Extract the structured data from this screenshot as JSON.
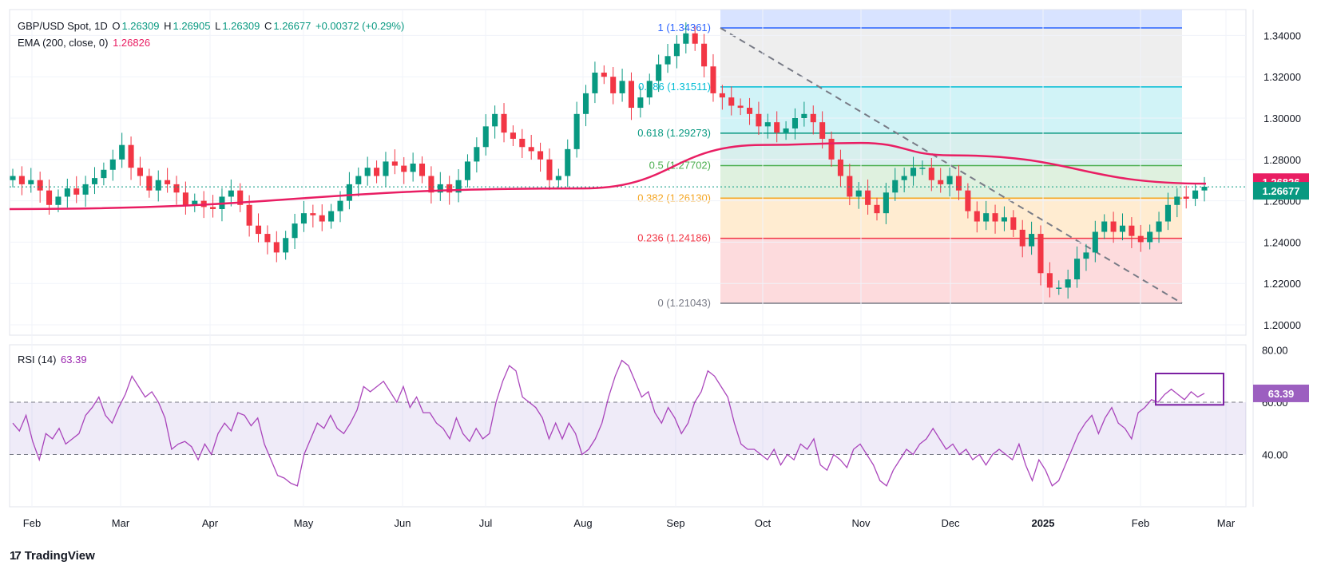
{
  "header": {
    "symbol": "GBP/USD Spot, 1D",
    "open_label": "O",
    "open": "1.26309",
    "high_label": "H",
    "high": "1.26905",
    "low_label": "L",
    "low": "1.26309",
    "close_label": "C",
    "close": "1.26677",
    "change": "+0.00372 (+0.29%)",
    "ema_label": "EMA (200, close, 0)",
    "ema_value": "1.26826",
    "rsi_label": "RSI (14)",
    "rsi_value": "63.39"
  },
  "brand": "TradingView",
  "colors": {
    "up": "#089981",
    "down": "#f23645",
    "ema": "#e91e63",
    "rsi": "#9c27b0",
    "fib_1": "#2962ff",
    "fib_786": "#00bcd4",
    "fib_618": "#089981",
    "fib_05": "#4caf50",
    "fib_382": "#f5a623",
    "fib_236": "#f23645",
    "fib_0": "#787b86"
  },
  "chart_data": [
    {
      "type": "candlestick",
      "title": "GBP/USD Spot, 1D",
      "x_ticks": [
        "Feb",
        "Mar",
        "Apr",
        "May",
        "Jun",
        "Jul",
        "Aug",
        "Sep",
        "Oct",
        "Nov",
        "Dec",
        "2025",
        "Feb",
        "Mar"
      ],
      "y_ticks": [
        "1.34000",
        "1.32000",
        "1.30000",
        "1.28000",
        "1.26000",
        "1.24000",
        "1.22000",
        "1.20000"
      ],
      "ylim": [
        1.195,
        1.3525
      ],
      "last_price": "1.26677",
      "ema_label_value": "1.26826",
      "fib_levels": [
        {
          "label": "1 (1.34361)",
          "value": 1.34361
        },
        {
          "label": "0.786 (1.31511)",
          "value": 1.31511
        },
        {
          "label": "0.618 (1.29273)",
          "value": 1.29273
        },
        {
          "label": "0.5 (1.27702)",
          "value": 1.27702
        },
        {
          "label": "0.382 (1.26130)",
          "value": 1.2613
        },
        {
          "label": "0.236 (1.24186)",
          "value": 1.24186
        },
        {
          "label": "0 (1.21043)",
          "value": 1.21043
        }
      ],
      "close_path": [
        1.272,
        1.268,
        1.27,
        1.265,
        1.258,
        1.262,
        1.266,
        1.263,
        1.268,
        1.271,
        1.275,
        1.28,
        1.287,
        1.276,
        1.272,
        1.265,
        1.27,
        1.268,
        1.264,
        1.258,
        1.26,
        1.257,
        1.256,
        1.262,
        1.265,
        1.258,
        1.248,
        1.244,
        1.24,
        1.235,
        1.242,
        1.249,
        1.254,
        1.253,
        1.25,
        1.255,
        1.26,
        1.268,
        1.272,
        1.276,
        1.272,
        1.279,
        1.277,
        1.274,
        1.278,
        1.272,
        1.264,
        1.268,
        1.264,
        1.27,
        1.279,
        1.286,
        1.296,
        1.302,
        1.293,
        1.29,
        1.286,
        1.284,
        1.28,
        1.27,
        1.272,
        1.285,
        1.302,
        1.312,
        1.322,
        1.32,
        1.312,
        1.318,
        1.305,
        1.31,
        1.318,
        1.326,
        1.33,
        1.336,
        1.341,
        1.336,
        1.325,
        1.312,
        1.31,
        1.306,
        1.305,
        1.302,
        1.296,
        1.298,
        1.293,
        1.295,
        1.3,
        1.302,
        1.298,
        1.29,
        1.28,
        1.272,
        1.262,
        1.265,
        1.258,
        1.254,
        1.264,
        1.27,
        1.272,
        1.276,
        1.276,
        1.27,
        1.268,
        1.272,
        1.265,
        1.255,
        1.25,
        1.254,
        1.25,
        1.252,
        1.246,
        1.238,
        1.244,
        1.225,
        1.218,
        1.218,
        1.222,
        1.232,
        1.235,
        1.245,
        1.25,
        1.245,
        1.248,
        1.243,
        1.24,
        1.245,
        1.25,
        1.258,
        1.262,
        1.261,
        1.265,
        1.2668
      ],
      "ema": [
        {
          "x": "start",
          "y": 1.256
        },
        {
          "x": "Aug",
          "y": 1.266
        },
        {
          "x": "Oct",
          "y": 1.287
        },
        {
          "x": "Nov",
          "y": 1.288
        },
        {
          "x": "Dec",
          "y": 1.282
        },
        {
          "x": "Mar",
          "y": 1.2683
        }
      ]
    },
    {
      "type": "line",
      "title": "RSI (14)",
      "y_ticks": [
        "80.00",
        "60.00",
        "40.00"
      ],
      "ylim": [
        20,
        82
      ],
      "upper_band": 60,
      "lower_band": 40,
      "last_value": "63.39",
      "values": [
        52,
        49,
        55,
        45,
        38,
        48,
        46,
        50,
        44,
        46,
        48,
        55,
        58,
        62,
        55,
        52,
        58,
        63,
        70,
        66,
        62,
        64,
        60,
        54,
        42,
        44,
        45,
        43,
        38,
        44,
        40,
        48,
        52,
        49,
        56,
        55,
        51,
        54,
        44,
        38,
        32,
        31,
        29,
        28,
        40,
        46,
        52,
        50,
        55,
        50,
        48,
        52,
        57,
        66,
        64,
        66,
        68,
        64,
        60,
        66,
        58,
        62,
        56,
        56,
        52,
        50,
        46,
        54,
        48,
        45,
        50,
        46,
        48,
        60,
        68,
        74,
        72,
        62,
        60,
        58,
        54,
        46,
        52,
        46,
        52,
        48,
        40,
        42,
        46,
        52,
        62,
        70,
        76,
        74,
        68,
        62,
        64,
        56,
        52,
        58,
        54,
        48,
        52,
        60,
        64,
        72,
        70,
        66,
        62,
        52,
        44,
        42,
        42,
        40,
        38,
        42,
        36,
        40,
        38,
        44,
        42,
        46,
        36,
        34,
        40,
        38,
        35,
        42,
        44,
        40,
        36,
        30,
        28,
        34,
        38,
        42,
        40,
        44,
        46,
        50,
        46,
        42,
        44,
        40,
        42,
        38,
        40,
        36,
        40,
        42,
        40,
        38,
        44,
        36,
        30,
        38,
        34,
        28,
        30,
        36,
        42,
        48,
        52,
        55,
        48,
        54,
        58,
        52,
        50,
        46,
        56,
        58,
        61,
        60,
        63,
        65,
        63,
        61,
        64,
        62,
        63.39
      ]
    }
  ]
}
